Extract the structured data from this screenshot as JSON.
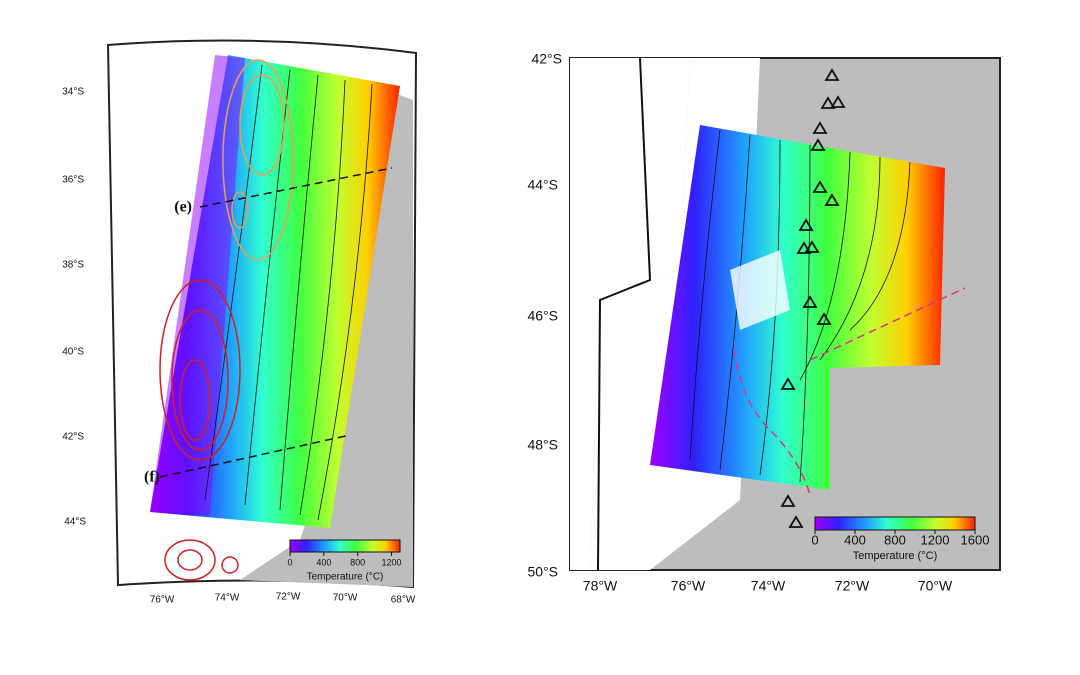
{
  "panels": [
    {
      "lat_labels": [
        "34°S",
        "36°S",
        "38°S",
        "40°S",
        "42°S",
        "44°S"
      ],
      "lon_labels": [
        "76°W",
        "74°W",
        "72°W",
        "70°W",
        "68°W"
      ],
      "annotations": [
        "(e)",
        "(f)"
      ],
      "colorbar": {
        "label": "Temperature (°C)",
        "lim": [
          0,
          1300
        ],
        "ticks": [
          0,
          400,
          800,
          1200
        ]
      }
    },
    {
      "lat_labels": [
        "42°S",
        "44°S",
        "46°S",
        "48°S",
        "50°S"
      ],
      "lon_labels": [
        "78°W",
        "76°W",
        "74°W",
        "72°W",
        "70°W"
      ],
      "colorbar": {
        "label": "Temperature (°C)",
        "lim": [
          0,
          1600
        ],
        "ticks": [
          0,
          400,
          800,
          1200,
          1600
        ]
      }
    }
  ]
}
